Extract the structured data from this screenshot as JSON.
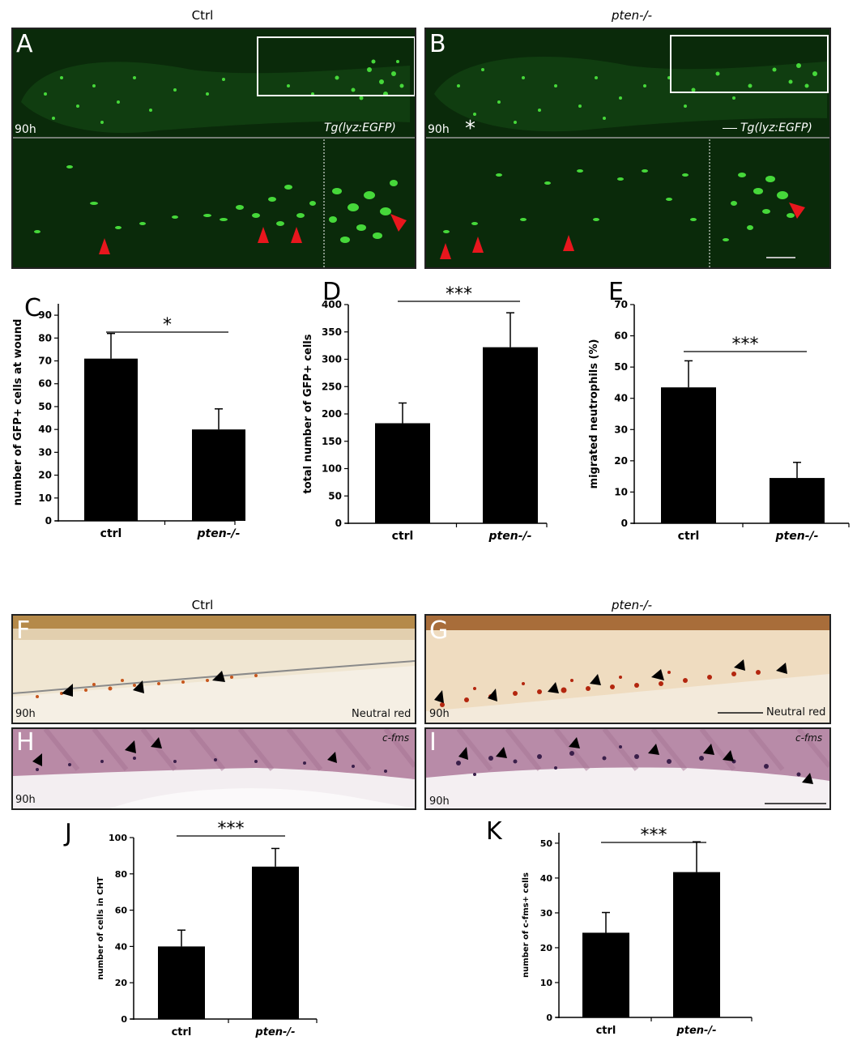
{
  "figure": {
    "top": {
      "ctrl_title": "Ctrl",
      "mut_title": "pten-/-",
      "panel_a": {
        "letter": "A",
        "age": "90h",
        "marker": "Tg(lyz:EGFP)"
      },
      "panel_b": {
        "letter": "B",
        "age": "90h",
        "marker": "Tg(lyz:EGFP)",
        "star": "*"
      }
    },
    "bottom": {
      "ctrl_title": "Ctrl",
      "mut_title": "pten-/-",
      "panel_f": {
        "letter": "F",
        "age": "90h",
        "stain": "Neutral red"
      },
      "panel_g": {
        "letter": "G",
        "age": "90h",
        "stain": "Neutral red"
      },
      "panel_h": {
        "letter": "H",
        "age": "90h",
        "stain": "c-fms"
      },
      "panel_i": {
        "letter": "I",
        "age": "90h",
        "stain": "c-fms"
      }
    },
    "colors": {
      "bar": "#000000",
      "arrow_red": "#e8161d",
      "fluor": "#39d12e"
    }
  },
  "chart_data": [
    {
      "type": "bar",
      "panel": "C",
      "categories": [
        "ctrl",
        "pten-/-"
      ],
      "values": [
        71,
        40
      ],
      "errors": [
        11,
        9
      ],
      "ylabel": "number of GFP+ cells at wound",
      "ylim": [
        0,
        95
      ],
      "yticks": [
        0,
        10,
        20,
        30,
        40,
        50,
        60,
        70,
        80,
        90
      ],
      "significance": "*"
    },
    {
      "type": "bar",
      "panel": "D",
      "categories": [
        "ctrl",
        "pten-/-"
      ],
      "values": [
        183,
        322
      ],
      "errors": [
        37,
        63
      ],
      "ylabel": "total number of GFP+ cells",
      "ylim": [
        0,
        400
      ],
      "yticks": [
        0,
        50,
        100,
        150,
        200,
        250,
        300,
        350,
        400
      ],
      "significance": "***"
    },
    {
      "type": "bar",
      "panel": "E",
      "categories": [
        "ctrl",
        "pten-/-"
      ],
      "values": [
        43.5,
        14.5
      ],
      "errors": [
        8.5,
        5
      ],
      "ylabel": "migrated neutrophils (%)",
      "ylim": [
        0,
        70
      ],
      "yticks": [
        0,
        10,
        20,
        30,
        40,
        50,
        60,
        70
      ],
      "significance": "***"
    },
    {
      "type": "bar",
      "panel": "J",
      "categories": [
        "ctrl",
        "pten-/-"
      ],
      "values": [
        40,
        84
      ],
      "errors": [
        9,
        10
      ],
      "ylabel": "number of cells in CHT",
      "ylim": [
        0,
        100
      ],
      "yticks": [
        0,
        20,
        40,
        60,
        80,
        100
      ],
      "significance": "***"
    },
    {
      "type": "bar",
      "panel": "K",
      "categories": [
        "ctrl",
        "pten-/-"
      ],
      "values": [
        24.3,
        41.7
      ],
      "errors": [
        5.8,
        8.7
      ],
      "ylabel": "number of c-fms+ cells",
      "ylim": [
        0,
        53
      ],
      "yticks": [
        0,
        10,
        20,
        30,
        40,
        50
      ],
      "significance": "***"
    }
  ]
}
